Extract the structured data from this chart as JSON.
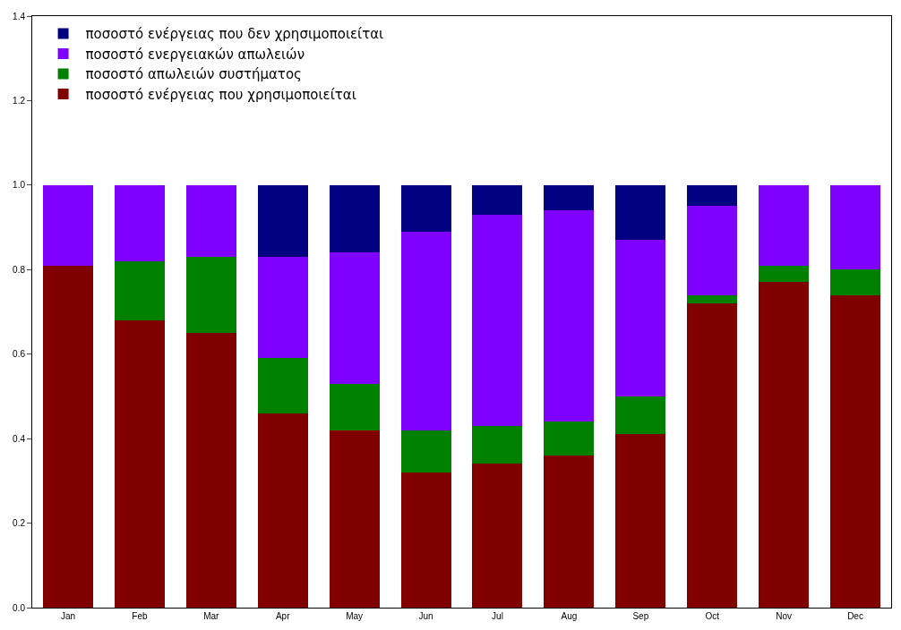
{
  "chart_data": {
    "type": "bar",
    "stacked": true,
    "categories": [
      "Jan",
      "Feb",
      "Mar",
      "Apr",
      "May",
      "Jun",
      "Jul",
      "Aug",
      "Sep",
      "Oct",
      "Nov",
      "Dec"
    ],
    "series": [
      {
        "name": "ποσοστό ενέργειας που χρησιμοποιείται",
        "color": "#800000",
        "values": [
          0.81,
          0.68,
          0.65,
          0.46,
          0.42,
          0.32,
          0.34,
          0.36,
          0.41,
          0.72,
          0.77,
          0.74
        ]
      },
      {
        "name": "ποσοστό απωλειών συστήματος",
        "color": "#008000",
        "values": [
          0,
          0.14,
          0.18,
          0.13,
          0.11,
          0.1,
          0.09,
          0.08,
          0.09,
          0.02,
          0.04,
          0.06
        ]
      },
      {
        "name": "ποσοστό ενεργειακών απωλειών",
        "color": "#8000ff",
        "values": [
          0.19,
          0.18,
          0.17,
          0.24,
          0.31,
          0.47,
          0.5,
          0.5,
          0.37,
          0.21,
          0.19,
          0.2
        ]
      },
      {
        "name": "ποσοστό ενέργειας που δεν χρησιμοποιείται",
        "color": "#000080",
        "values": [
          0,
          0,
          0,
          0.17,
          0.16,
          0.11,
          0.07,
          0.06,
          0.13,
          0.05,
          0,
          0
        ]
      }
    ],
    "ylim": [
      0,
      1.4
    ],
    "yticks": [
      {
        "value": 0,
        "label": "0.0"
      },
      0.2,
      0.4,
      0.6,
      0.8,
      {
        "value": 1,
        "label": "1.0"
      },
      1.2,
      1.4
    ],
    "grid": false,
    "legend": "top left"
  }
}
